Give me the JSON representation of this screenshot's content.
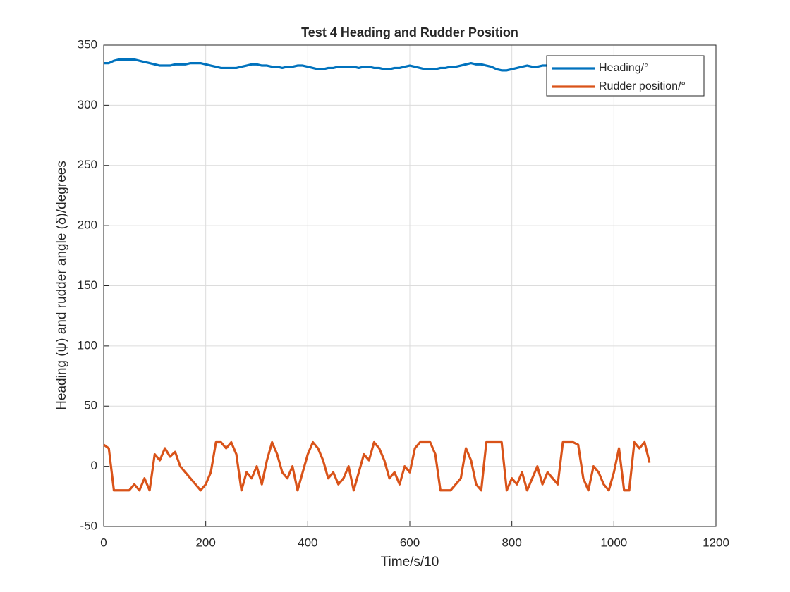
{
  "chart_data": {
    "type": "line",
    "title": "Test 4 Heading and Rudder Position",
    "xlabel": "Time/s/10",
    "ylabel": "Heading (ψ) and rudder angle (δ)/degrees",
    "x": [
      0,
      10,
      20,
      30,
      40,
      50,
      60,
      70,
      80,
      90,
      100,
      110,
      120,
      130,
      140,
      150,
      160,
      170,
      180,
      190,
      200,
      210,
      220,
      230,
      240,
      250,
      260,
      270,
      280,
      290,
      300,
      310,
      320,
      330,
      340,
      350,
      360,
      370,
      380,
      390,
      400,
      410,
      420,
      430,
      440,
      450,
      460,
      470,
      480,
      490,
      500,
      510,
      520,
      530,
      540,
      550,
      560,
      570,
      580,
      590,
      600,
      610,
      620,
      630,
      640,
      650,
      660,
      670,
      680,
      690,
      700,
      710,
      720,
      730,
      740,
      750,
      760,
      770,
      780,
      790,
      800,
      810,
      820,
      830,
      840,
      850,
      860,
      870,
      880,
      890,
      900,
      910,
      920,
      930,
      940,
      950,
      960,
      970,
      980,
      990,
      1000,
      1010,
      1020,
      1030,
      1040,
      1050,
      1060,
      1070
    ],
    "series": [
      {
        "name": "Heading/°",
        "color": "#0072BD",
        "values": [
          335,
          335,
          337,
          338,
          338,
          338,
          338,
          337,
          336,
          335,
          334,
          333,
          333,
          333,
          334,
          334,
          334,
          335,
          335,
          335,
          334,
          333,
          332,
          331,
          331,
          331,
          331,
          332,
          333,
          334,
          334,
          333,
          333,
          332,
          332,
          331,
          332,
          332,
          333,
          333,
          332,
          331,
          330,
          330,
          331,
          331,
          332,
          332,
          332,
          332,
          331,
          332,
          332,
          331,
          331,
          330,
          330,
          331,
          331,
          332,
          333,
          332,
          331,
          330,
          330,
          330,
          331,
          331,
          332,
          332,
          333,
          334,
          335,
          334,
          334,
          333,
          332,
          330,
          329,
          329,
          330,
          331,
          332,
          333,
          332,
          332,
          333,
          333,
          332,
          332,
          331,
          331,
          331,
          332,
          332,
          332,
          333,
          333,
          332,
          332,
          332,
          331,
          331,
          331,
          332,
          332,
          332,
          332
        ]
      },
      {
        "name": "Rudder position/°",
        "color": "#D95319",
        "values": [
          18,
          15,
          -20,
          -20,
          -20,
          -20,
          -15,
          -20,
          -10,
          -20,
          10,
          5,
          15,
          8,
          12,
          0,
          -5,
          -10,
          -15,
          -20,
          -15,
          -5,
          20,
          20,
          15,
          20,
          10,
          -20,
          -5,
          -10,
          0,
          -15,
          5,
          20,
          10,
          -5,
          -10,
          0,
          -20,
          -5,
          10,
          20,
          15,
          5,
          -10,
          -5,
          -15,
          -10,
          0,
          -20,
          -5,
          10,
          5,
          20,
          15,
          5,
          -10,
          -5,
          -15,
          0,
          -5,
          15,
          20,
          20,
          20,
          10,
          -20,
          -20,
          -20,
          -15,
          -10,
          15,
          5,
          -15,
          -20,
          20,
          20,
          20,
          20,
          -20,
          -10,
          -15,
          -5,
          -20,
          -10,
          0,
          -15,
          -5,
          -10,
          -15,
          20,
          20,
          20,
          18,
          -10,
          -20,
          0,
          -5,
          -15,
          -20,
          -5,
          15,
          -20,
          -20,
          20,
          15,
          20,
          3
        ]
      }
    ],
    "xlim": [
      0,
      1200
    ],
    "xticks": [
      0,
      200,
      400,
      600,
      800,
      1000,
      1200
    ],
    "ylim": [
      -50,
      350
    ],
    "yticks": [
      -50,
      0,
      50,
      100,
      150,
      200,
      250,
      300,
      350
    ],
    "grid": true,
    "legend": "upper right"
  }
}
